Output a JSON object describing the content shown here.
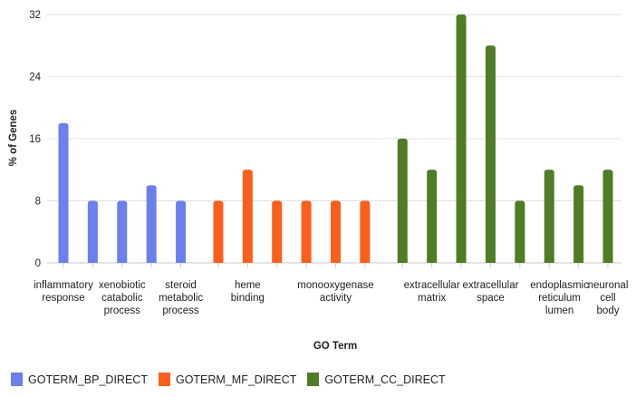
{
  "chart_data": {
    "type": "bar",
    "title": "",
    "xlabel": "GO Term",
    "ylabel": "% of Genes",
    "ylim": [
      0,
      32
    ],
    "yticks": [
      0,
      8,
      16,
      24,
      32
    ],
    "grid": true,
    "legend_position": "bottom-left",
    "series": [
      {
        "name": "GOTERM_BP_DIRECT",
        "color": "#6b80ec"
      },
      {
        "name": "GOTERM_MF_DIRECT",
        "color": "#fa5f1c"
      },
      {
        "name": "GOTERM_CC_DIRECT",
        "color": "#4e7d25"
      }
    ],
    "bars": [
      {
        "series": 0,
        "value": 18
      },
      {
        "series": 0,
        "value": 8
      },
      {
        "series": 0,
        "value": 8
      },
      {
        "series": 0,
        "value": 10
      },
      {
        "series": 0,
        "value": 8
      },
      {
        "series": 1,
        "value": 8
      },
      {
        "series": 1,
        "value": 12
      },
      {
        "series": 1,
        "value": 8
      },
      {
        "series": 1,
        "value": 8
      },
      {
        "series": 1,
        "value": 8
      },
      {
        "series": 1,
        "value": 8
      },
      {
        "series": 2,
        "value": 16
      },
      {
        "series": 2,
        "value": 12
      },
      {
        "series": 2,
        "value": 32
      },
      {
        "series": 2,
        "value": 28
      },
      {
        "series": 2,
        "value": 8
      },
      {
        "series": 2,
        "value": 12
      },
      {
        "series": 2,
        "value": 10
      },
      {
        "series": 2,
        "value": 12
      }
    ],
    "category_labels": [
      {
        "lines": [
          "inflammatory",
          "response"
        ]
      },
      {
        "lines": [
          "xenobiotic",
          "catabolic",
          "process"
        ]
      },
      {
        "lines": [
          "steroid",
          "metabolic",
          "process"
        ]
      },
      {
        "lines": [
          "heme",
          "binding"
        ]
      },
      {
        "lines": [
          "monooxygenase",
          "activity"
        ]
      },
      {
        "lines": [
          "extracellular",
          "matrix"
        ]
      },
      {
        "lines": [
          "extracellular",
          "space"
        ]
      },
      {
        "lines": [
          "endoplasmic",
          "reticulum",
          "lumen"
        ]
      },
      {
        "lines": [
          "neuronal",
          "cell",
          "body"
        ]
      }
    ]
  }
}
